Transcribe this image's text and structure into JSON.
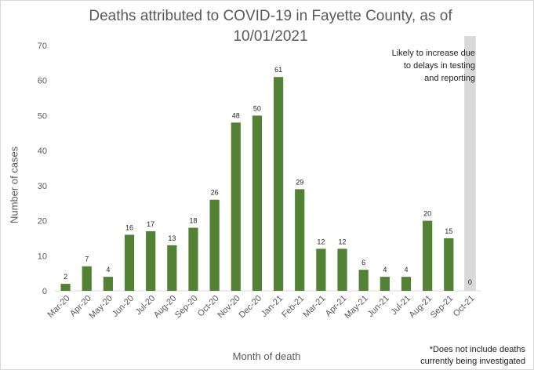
{
  "chart_data": {
    "type": "bar",
    "title_lines": [
      "Deaths attributed to COVID-19 in Fayette County, as of",
      "10/01/2021"
    ],
    "xlabel": "Month of death",
    "ylabel": "Number of cases",
    "ylim": [
      0,
      70
    ],
    "yticks": [
      0,
      10,
      20,
      30,
      40,
      50,
      60,
      70
    ],
    "grid": false,
    "categories": [
      "Mar-20",
      "Apr-20",
      "May-20",
      "Jun-20",
      "Jul-20",
      "Aug-20",
      "Sep-20",
      "Oct-20",
      "Nov-20",
      "Dec-20",
      "Jan-21",
      "Feb-21",
      "Mar-21",
      "Apr-21",
      "May-21",
      "Jun-21",
      "Jul-21",
      "Aug-21",
      "Sep-21",
      "Oct-21"
    ],
    "values": [
      2,
      7,
      4,
      16,
      17,
      13,
      18,
      26,
      48,
      50,
      61,
      29,
      12,
      12,
      6,
      4,
      4,
      20,
      15,
      0
    ],
    "bar_color": "#548235",
    "shaded_region": {
      "category": "Oct-21",
      "color": "#d9d9d9"
    },
    "annotation_lines": [
      "Likely to increase due",
      "to delays in testing",
      "and reporting"
    ],
    "footnote_lines": [
      "*Does not include deaths",
      "currently being investigated"
    ]
  }
}
